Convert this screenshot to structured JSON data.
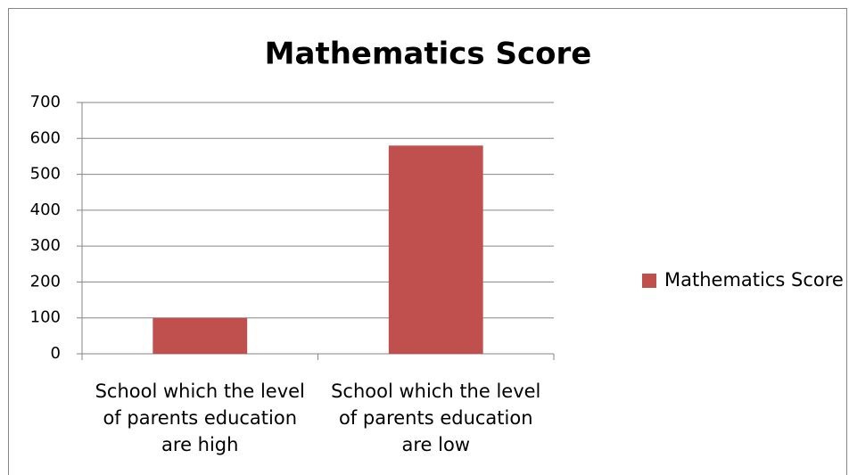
{
  "chart_data": {
    "type": "bar",
    "title": "Mathematics Score",
    "categories": [
      "School which the level of parents education are high",
      "School which the level of parents education are low"
    ],
    "series": [
      {
        "name": "Mathematics Score",
        "color": "#c0504d",
        "values": [
          100,
          580
        ]
      }
    ],
    "ylim": [
      0,
      700
    ],
    "yticks": [
      0,
      100,
      200,
      300,
      400,
      500,
      600,
      700
    ],
    "grid": true,
    "legend": "right"
  }
}
